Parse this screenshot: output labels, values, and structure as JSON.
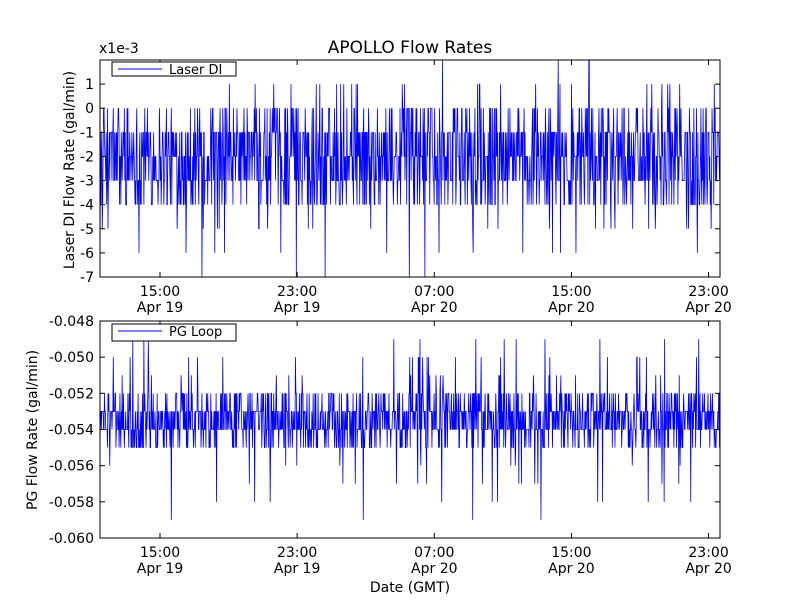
{
  "chart_data": [
    {
      "type": "line",
      "title": "APOLLO Flow Rates",
      "xlabel": "",
      "ylabel": "Laser DI Flow Rate (gal/min)",
      "scale_note": "x1e-3",
      "series": [
        {
          "name": "Laser DI",
          "color": "#0000ff",
          "baseline": -2,
          "typical_range": [
            -4,
            0
          ],
          "excursion_range": [
            -7,
            2
          ]
        }
      ],
      "yticks": [
        "1",
        "0",
        "-1",
        "-2",
        "-3",
        "-4",
        "-5",
        "-6",
        "-7"
      ],
      "ylim": [
        -7,
        2
      ],
      "xticks": [
        {
          "time": "15:00",
          "date": "Apr 19",
          "datetime": "2013-04-19 15:00"
        },
        {
          "time": "23:00",
          "date": "Apr 19",
          "datetime": "2013-04-19 23:00"
        },
        {
          "time": "07:00",
          "date": "Apr 20",
          "datetime": "2013-04-20 07:00"
        },
        {
          "time": "15:00",
          "date": "Apr 20",
          "datetime": "2013-04-20 15:00"
        },
        {
          "time": "23:00",
          "date": "Apr 20",
          "datetime": "2013-04-20 23:00"
        }
      ],
      "xlim": [
        "2013-04-19 11:30",
        "2013-04-20 23:40"
      ],
      "legend_position": "top-left",
      "grid": false
    },
    {
      "type": "line",
      "title": "",
      "xlabel": "Date (GMT)",
      "ylabel": "PG Flow Rate (gal/min)",
      "series": [
        {
          "name": "PG Loop",
          "color": "#0000ff",
          "baseline": -0.0536,
          "typical_range": [
            -0.055,
            -0.052
          ],
          "excursion_range": [
            -0.059,
            -0.049
          ]
        }
      ],
      "yticks": [
        "-0.048",
        "-0.050",
        "-0.052",
        "-0.054",
        "-0.056",
        "-0.058",
        "-0.060"
      ],
      "ylim": [
        -0.06,
        -0.048
      ],
      "xticks": [
        {
          "time": "15:00",
          "date": "Apr 19",
          "datetime": "2013-04-19 15:00"
        },
        {
          "time": "23:00",
          "date": "Apr 19",
          "datetime": "2013-04-19 23:00"
        },
        {
          "time": "07:00",
          "date": "Apr 20",
          "datetime": "2013-04-20 07:00"
        },
        {
          "time": "15:00",
          "date": "Apr 20",
          "datetime": "2013-04-20 15:00"
        },
        {
          "time": "23:00",
          "date": "Apr 20",
          "datetime": "2013-04-20 23:00"
        }
      ],
      "xlim": [
        "2013-04-19 11:30",
        "2013-04-20 23:40"
      ],
      "legend_position": "top-left",
      "grid": false
    }
  ]
}
